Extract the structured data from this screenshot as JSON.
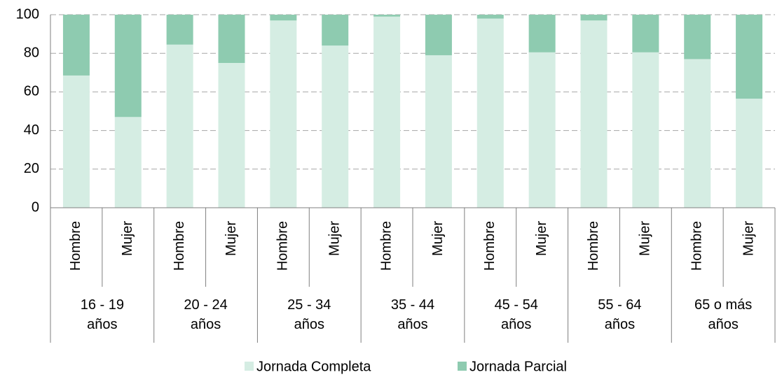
{
  "chart_data": {
    "type": "stacked_bar",
    "categories": [
      "Hombre",
      "Mujer",
      "Hombre",
      "Mujer",
      "Hombre",
      "Mujer",
      "Hombre",
      "Mujer",
      "Hombre",
      "Mujer",
      "Hombre",
      "Mujer",
      "Hombre",
      "Mujer"
    ],
    "groups": [
      "16 - 19 años",
      "20 - 24 años",
      "25 - 34 años",
      "35 - 44 años",
      "45 - 54 años",
      "55 - 64 años",
      "65 o más años"
    ],
    "series": [
      {
        "name": "Jornada Completa",
        "color": "#d5ede3",
        "values": [
          68.5,
          47,
          84.5,
          75,
          97,
          84,
          99,
          79,
          98,
          80.5,
          97,
          80.5,
          77,
          56.5
        ]
      },
      {
        "name": "Jornada Parcial",
        "color": "#8ecbb0",
        "values": [
          31.5,
          53,
          15.5,
          25,
          3,
          16,
          1,
          21,
          2,
          19.5,
          3,
          19.5,
          23,
          43.5
        ]
      }
    ],
    "ylim": [
      0,
      100
    ],
    "yticks": [
      0,
      20,
      40,
      60,
      80,
      100
    ],
    "grid": true,
    "legend": "bottom"
  }
}
